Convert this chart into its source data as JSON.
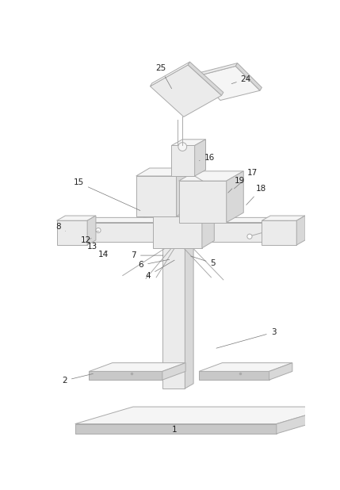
{
  "bg_color": "#ffffff",
  "line_color": "#aaaaaa",
  "line_width": 0.7,
  "label_color": "#222222",
  "label_fontsize": 7.5,
  "figsize": [
    4.29,
    6.18
  ],
  "dpi": 100,
  "fc_front": "#ebebeb",
  "fc_top": "#f5f5f5",
  "fc_side": "#d8d8d8",
  "fc_dark": "#c8c8c8"
}
